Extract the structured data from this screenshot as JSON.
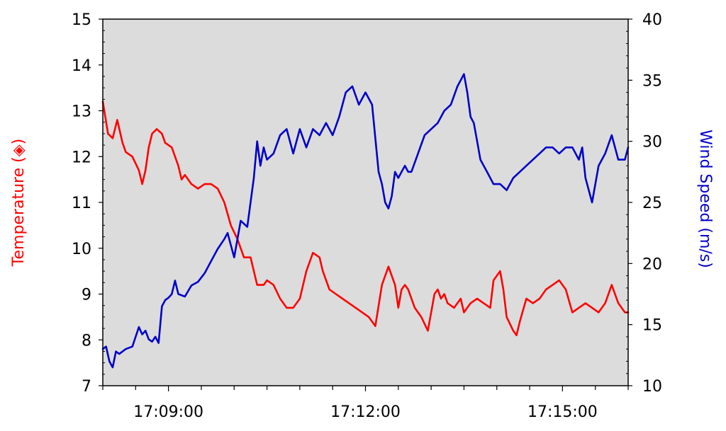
{
  "chart_data": {
    "type": "line",
    "title": "",
    "xlabel": "",
    "x_tick_labels": [
      "17:09:00",
      "17:12:00",
      "17:15:00"
    ],
    "x_tick_values": [
      1.0,
      4.0,
      7.0
    ],
    "xlim": [
      0.0,
      8.0
    ],
    "y_left": {
      "label": "Temperature (◈)",
      "range": [
        7,
        15
      ],
      "ticks": [
        "7",
        "8",
        "9",
        "10",
        "11",
        "12",
        "13",
        "14",
        "15"
      ],
      "color": "#ff0000"
    },
    "y_right": {
      "label": "Wind Speed (m/s)",
      "range": [
        10,
        40
      ],
      "ticks": [
        "10",
        "15",
        "20",
        "25",
        "30",
        "35",
        "40"
      ],
      "color": "#0000c8"
    },
    "grid": false,
    "background": "#dcdcdc",
    "series": [
      {
        "axis": "left",
        "color": "#ff0000",
        "x": [
          0.0,
          0.08,
          0.15,
          0.22,
          0.3,
          0.35,
          0.45,
          0.55,
          0.6,
          0.65,
          0.7,
          0.75,
          0.82,
          0.9,
          0.95,
          1.05,
          1.15,
          1.2,
          1.25,
          1.3,
          1.35,
          1.45,
          1.55,
          1.65,
          1.75,
          1.85,
          1.95,
          2.05,
          2.15,
          2.25,
          2.35,
          2.45,
          2.5,
          2.6,
          2.7,
          2.8,
          2.9,
          3.0,
          3.1,
          3.2,
          3.3,
          3.35,
          3.45,
          3.55,
          3.65,
          3.75,
          3.85,
          3.95,
          4.05,
          4.15,
          4.25,
          4.35,
          4.45,
          4.5,
          4.55,
          4.6,
          4.65,
          4.75,
          4.85,
          4.95,
          5.05,
          5.1,
          5.15,
          5.2,
          5.25,
          5.35,
          5.45,
          5.5,
          5.6,
          5.7,
          5.8,
          5.9,
          5.95,
          6.05,
          6.1,
          6.15,
          6.25,
          6.3,
          6.35,
          6.45,
          6.55,
          6.65,
          6.75,
          6.85,
          6.95,
          7.05,
          7.15,
          7.25,
          7.35,
          7.45,
          7.55,
          7.65,
          7.75,
          7.85,
          7.95,
          8.0
        ],
        "y": [
          13.2,
          12.5,
          12.4,
          12.8,
          12.3,
          12.1,
          12.0,
          11.7,
          11.4,
          11.7,
          12.2,
          12.5,
          12.6,
          12.5,
          12.3,
          12.2,
          11.8,
          11.5,
          11.6,
          11.5,
          11.4,
          11.3,
          11.4,
          11.4,
          11.3,
          11.0,
          10.5,
          10.2,
          9.8,
          9.8,
          9.2,
          9.2,
          9.3,
          9.2,
          8.9,
          8.7,
          8.7,
          8.9,
          9.5,
          9.9,
          9.8,
          9.5,
          9.1,
          9.0,
          8.9,
          8.8,
          8.7,
          8.6,
          8.5,
          8.3,
          9.2,
          9.6,
          9.2,
          8.7,
          9.1,
          9.2,
          9.1,
          8.7,
          8.5,
          8.2,
          9.0,
          9.1,
          8.9,
          9.0,
          8.8,
          8.7,
          8.9,
          8.6,
          8.8,
          8.9,
          8.8,
          8.7,
          9.3,
          9.5,
          9.1,
          8.5,
          8.2,
          8.1,
          8.4,
          8.9,
          8.8,
          8.9,
          9.1,
          9.2,
          9.3,
          9.1,
          8.6,
          8.7,
          8.8,
          8.7,
          8.6,
          8.8,
          9.2,
          8.8,
          8.6,
          8.6
        ]
      },
      {
        "axis": "right",
        "color": "#0000c8",
        "x": [
          0.0,
          0.05,
          0.1,
          0.15,
          0.2,
          0.25,
          0.35,
          0.45,
          0.5,
          0.55,
          0.6,
          0.65,
          0.7,
          0.75,
          0.8,
          0.85,
          0.9,
          0.95,
          1.0,
          1.05,
          1.1,
          1.15,
          1.25,
          1.35,
          1.45,
          1.55,
          1.65,
          1.75,
          1.85,
          1.9,
          1.95,
          2.0,
          2.05,
          2.1,
          2.2,
          2.3,
          2.35,
          2.4,
          2.45,
          2.5,
          2.6,
          2.7,
          2.8,
          2.9,
          3.0,
          3.1,
          3.2,
          3.3,
          3.4,
          3.5,
          3.6,
          3.7,
          3.8,
          3.9,
          4.0,
          4.1,
          4.2,
          4.25,
          4.3,
          4.35,
          4.4,
          4.45,
          4.5,
          4.55,
          4.6,
          4.65,
          4.7,
          4.8,
          4.9,
          5.0,
          5.1,
          5.2,
          5.3,
          5.4,
          5.5,
          5.55,
          5.6,
          5.65,
          5.7,
          5.75,
          5.85,
          5.95,
          6.05,
          6.15,
          6.25,
          6.35,
          6.45,
          6.55,
          6.65,
          6.75,
          6.85,
          6.95,
          7.05,
          7.15,
          7.25,
          7.3,
          7.35,
          7.45,
          7.55,
          7.65,
          7.75,
          7.85,
          7.95,
          8.0
        ],
        "y": [
          13.0,
          13.2,
          12.0,
          11.5,
          12.8,
          12.6,
          13.0,
          13.2,
          14.0,
          14.8,
          14.2,
          14.5,
          13.8,
          13.6,
          14.0,
          13.5,
          16.5,
          17.0,
          17.2,
          17.5,
          18.6,
          17.5,
          17.3,
          18.2,
          18.5,
          19.2,
          20.2,
          21.2,
          22.0,
          22.5,
          21.5,
          20.5,
          22.0,
          23.5,
          23.0,
          27.0,
          30.0,
          28.0,
          29.5,
          28.5,
          29.0,
          30.5,
          31.0,
          29.0,
          31.0,
          29.5,
          31.0,
          30.5,
          31.5,
          30.5,
          32.0,
          34.0,
          34.5,
          33.0,
          34.0,
          33.0,
          27.5,
          26.5,
          25.0,
          24.5,
          25.5,
          27.5,
          27.0,
          27.5,
          28.0,
          27.5,
          27.5,
          29.0,
          30.5,
          31.0,
          31.5,
          32.5,
          33.0,
          34.5,
          35.5,
          34.0,
          32.0,
          31.5,
          30.0,
          28.5,
          27.5,
          26.5,
          26.5,
          26.0,
          27.0,
          27.5,
          28.0,
          28.5,
          29.0,
          29.5,
          29.5,
          29.0,
          29.5,
          29.5,
          28.5,
          29.5,
          27.0,
          25.0,
          28.0,
          29.0,
          30.5,
          28.5,
          28.5,
          29.5
        ]
      }
    ]
  }
}
